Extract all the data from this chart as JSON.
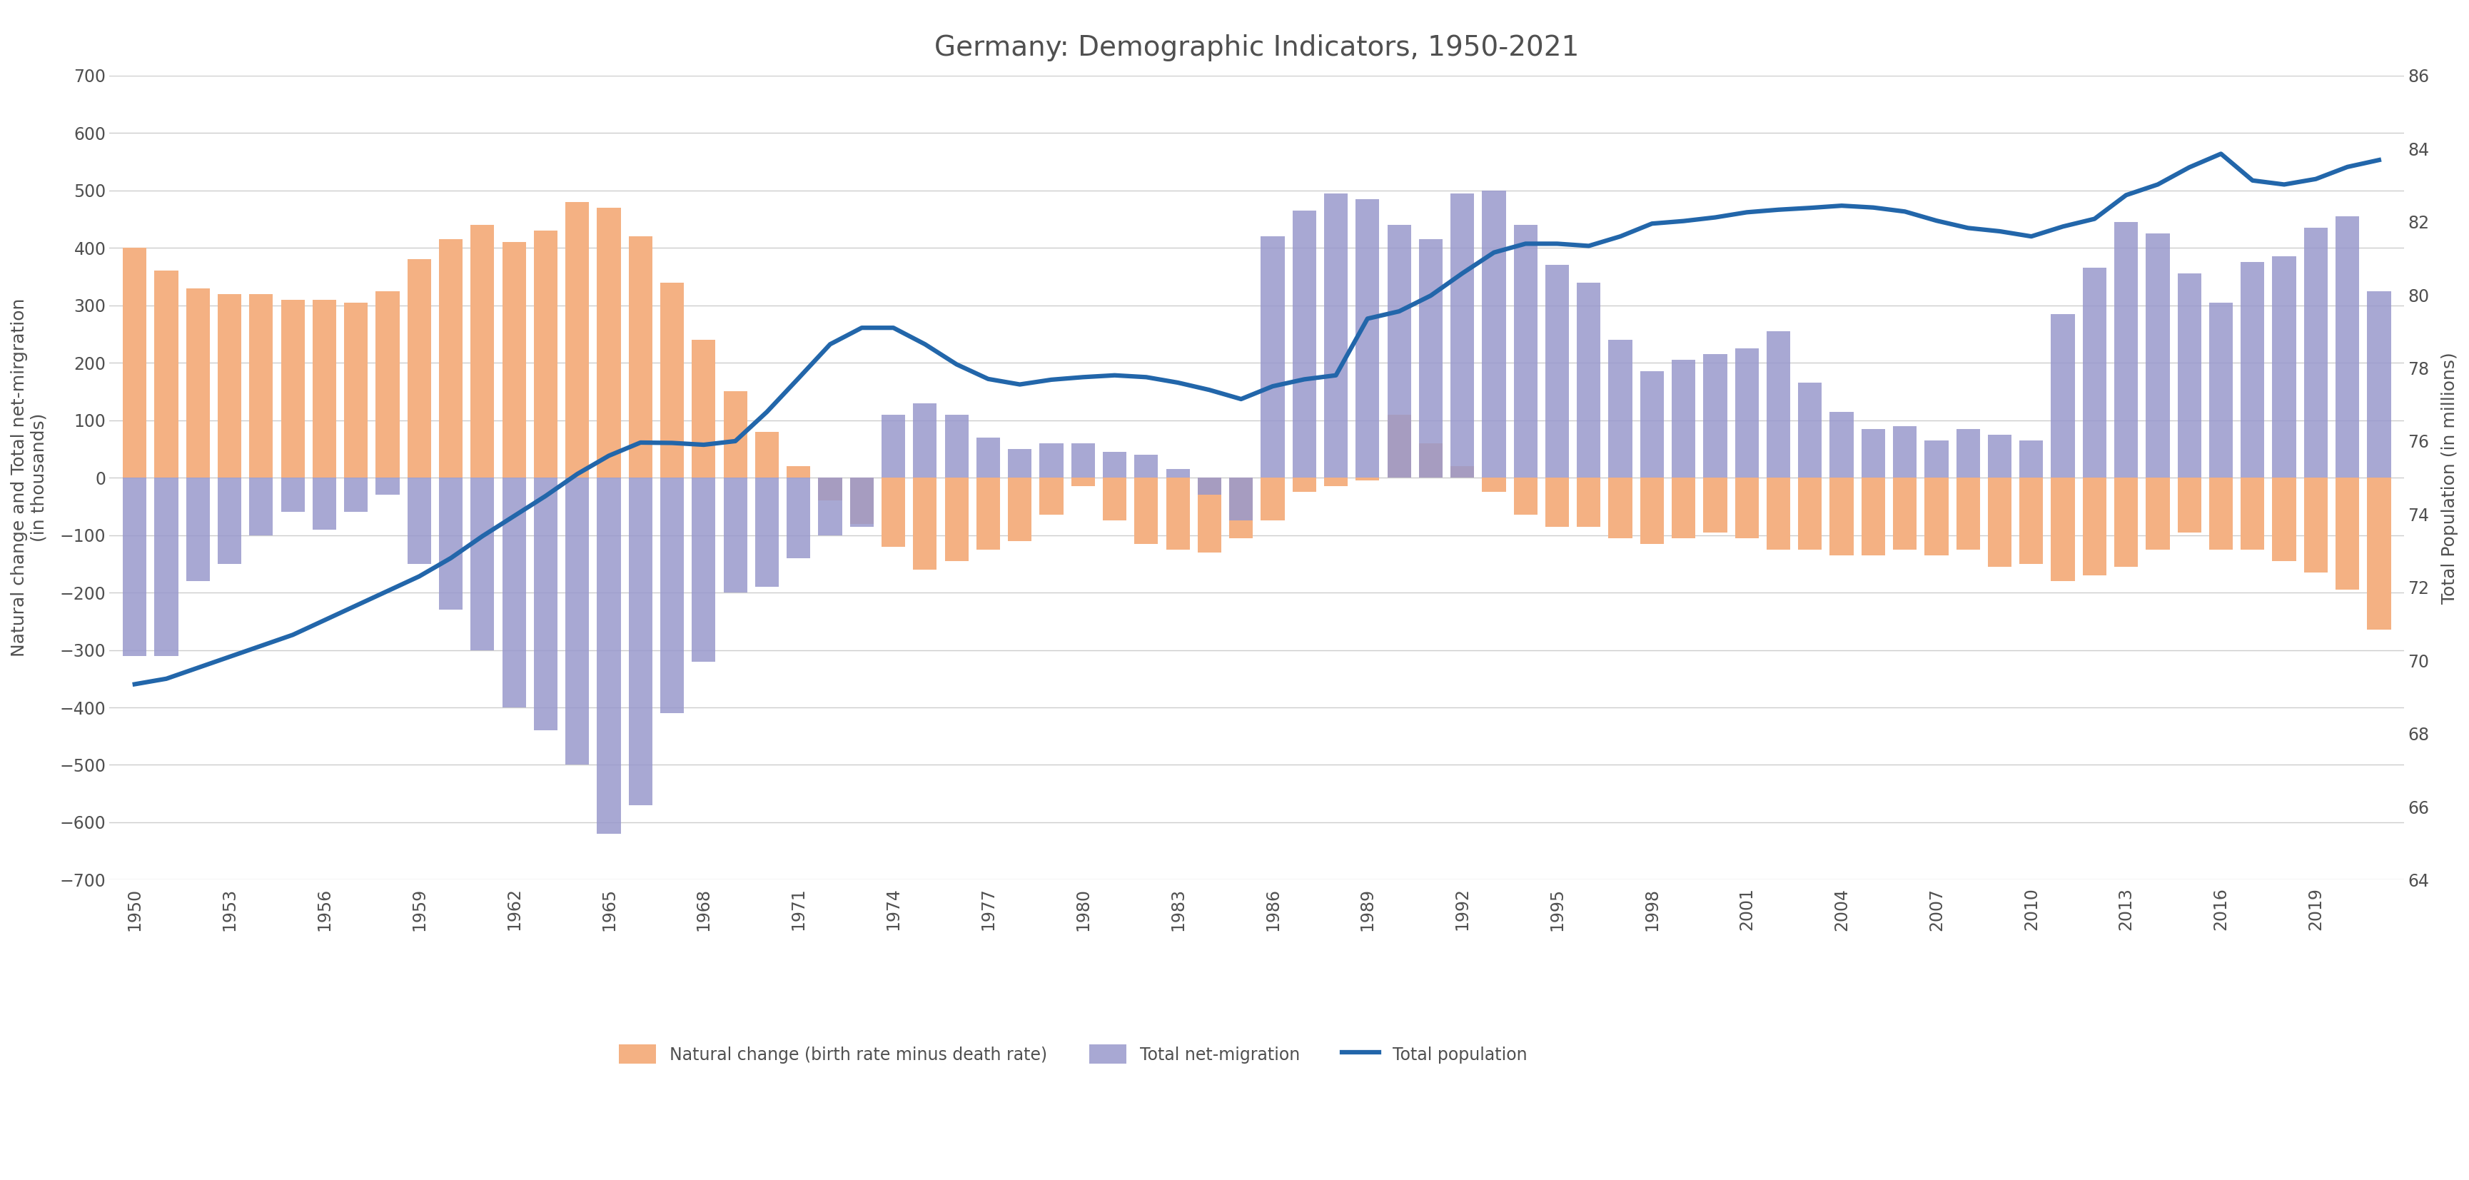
{
  "title": "Germany: Demographic Indicators, 1950-2021",
  "ylabel_left": "Natural change and Total net-mirgration\n(in thousands)",
  "ylabel_right": "Total Population (in millions)",
  "ylim_left": [
    -700,
    700
  ],
  "ylim_right": [
    64,
    86
  ],
  "yticks_left": [
    -700,
    -600,
    -500,
    -400,
    -300,
    -200,
    -100,
    0,
    100,
    200,
    300,
    400,
    500,
    600,
    700
  ],
  "yticks_right": [
    64,
    66,
    68,
    70,
    72,
    74,
    76,
    78,
    80,
    82,
    84,
    86
  ],
  "years": [
    1950,
    1951,
    1952,
    1953,
    1954,
    1955,
    1956,
    1957,
    1958,
    1959,
    1960,
    1961,
    1962,
    1963,
    1964,
    1965,
    1966,
    1967,
    1968,
    1969,
    1970,
    1971,
    1972,
    1973,
    1974,
    1975,
    1976,
    1977,
    1978,
    1979,
    1980,
    1981,
    1982,
    1983,
    1984,
    1985,
    1986,
    1987,
    1988,
    1989,
    1990,
    1991,
    1992,
    1993,
    1994,
    1995,
    1996,
    1997,
    1998,
    1999,
    2000,
    2001,
    2002,
    2003,
    2004,
    2005,
    2006,
    2007,
    2008,
    2009,
    2010,
    2011,
    2012,
    2013,
    2014,
    2015,
    2016,
    2017,
    2018,
    2019,
    2020,
    2021
  ],
  "natural_change": [
    400,
    360,
    330,
    320,
    320,
    310,
    310,
    305,
    325,
    380,
    415,
    440,
    410,
    430,
    480,
    470,
    420,
    340,
    240,
    150,
    80,
    20,
    -40,
    -80,
    -120,
    -160,
    -145,
    -125,
    -110,
    -65,
    -15,
    -75,
    -115,
    -125,
    -130,
    -105,
    -75,
    -25,
    -15,
    -5,
    110,
    60,
    20,
    -25,
    -65,
    -85,
    -85,
    -105,
    -115,
    -105,
    -95,
    -105,
    -125,
    -125,
    -135,
    -135,
    -125,
    -135,
    -125,
    -155,
    -150,
    -180,
    -170,
    -155,
    -125,
    -95,
    -125,
    -125,
    -145,
    -165,
    -195,
    -265
  ],
  "net_migration": [
    -310,
    -310,
    -180,
    -150,
    -100,
    -60,
    -90,
    -60,
    -30,
    -150,
    -230,
    -300,
    -400,
    -440,
    -500,
    -620,
    -570,
    -410,
    -320,
    -200,
    -190,
    -140,
    -100,
    -85,
    110,
    130,
    110,
    70,
    50,
    60,
    60,
    45,
    40,
    15,
    -30,
    -75,
    420,
    465,
    495,
    485,
    440,
    415,
    495,
    500,
    440,
    370,
    340,
    240,
    185,
    205,
    215,
    225,
    255,
    165,
    115,
    85,
    90,
    65,
    85,
    75,
    65,
    285,
    365,
    445,
    425,
    355,
    305,
    375,
    385,
    435,
    455,
    325
  ],
  "total_population": [
    69.35,
    69.5,
    69.8,
    70.1,
    70.4,
    70.7,
    71.1,
    71.5,
    71.9,
    72.3,
    72.8,
    73.4,
    73.95,
    74.5,
    75.1,
    75.6,
    75.96,
    75.95,
    75.9,
    76.0,
    76.8,
    77.72,
    78.65,
    79.1,
    79.1,
    78.65,
    78.1,
    77.7,
    77.55,
    77.68,
    77.75,
    77.8,
    77.75,
    77.6,
    77.4,
    77.15,
    77.5,
    77.69,
    77.8,
    79.35,
    79.55,
    79.98,
    80.59,
    81.16,
    81.4,
    81.4,
    81.34,
    81.6,
    81.95,
    82.02,
    82.12,
    82.26,
    82.33,
    82.38,
    82.44,
    82.39,
    82.28,
    82.03,
    81.83,
    81.74,
    81.6,
    81.87,
    82.08,
    82.73,
    83.02,
    83.49,
    83.86,
    83.13,
    83.02,
    83.17,
    83.5,
    83.69
  ],
  "natural_change_color": "#f4b183",
  "net_migration_color": "#9999cc",
  "population_color": "#2266aa",
  "background_color": "#ffffff",
  "grid_color": "#cccccc",
  "text_color": "#505050",
  "title_fontsize": 28,
  "label_fontsize": 18,
  "tick_fontsize": 17,
  "legend_fontsize": 17,
  "bar_width": 0.75,
  "legend_labels": [
    "Natural change (birth rate minus death rate)",
    "Total net-migration",
    "Total population"
  ]
}
